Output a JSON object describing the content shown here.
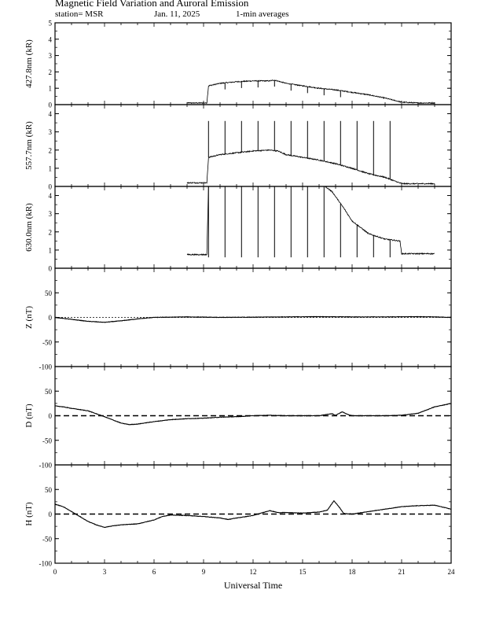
{
  "header": {
    "title": "Magnetic Field Variation and Auroral Emission",
    "station": "station= MSR",
    "date": "Jan. 11, 2025",
    "averaging": "1-min averages"
  },
  "chart_data": {
    "type": "line",
    "xlabel": "Universal Time",
    "xlim": [
      0,
      24
    ],
    "xticks": [
      0,
      3,
      6,
      9,
      12,
      15,
      18,
      21,
      24
    ],
    "panels": [
      {
        "id": "emission-4278",
        "ylabel": "427.8nm (kR)",
        "ylim": [
          0,
          5
        ],
        "yticks": [
          0,
          1,
          2,
          3,
          4,
          5
        ],
        "data_start": 8.0,
        "data_end": 23.0,
        "x": [
          8.0,
          9.2,
          9.3,
          10.0,
          11.0,
          12.0,
          13.0,
          13.3,
          14.0,
          15.0,
          16.0,
          17.0,
          18.0,
          19.0,
          20.0,
          21.0,
          22.0,
          23.0
        ],
        "y": [
          0.1,
          0.1,
          1.15,
          1.3,
          1.4,
          1.45,
          1.45,
          1.5,
          1.3,
          1.15,
          1.0,
          0.9,
          0.75,
          0.6,
          0.4,
          0.15,
          0.1,
          0.1
        ],
        "spikes_at": [
          10.3,
          11.3,
          12.3,
          13.3,
          14.3,
          15.3,
          16.3,
          17.3
        ],
        "spike_depth": 0.4
      },
      {
        "id": "emission-5577",
        "ylabel": "557.7nm (kR)",
        "ylim": [
          0,
          4.5
        ],
        "yticks": [
          0,
          1,
          2,
          3,
          4
        ],
        "data_start": 8.0,
        "data_end": 23.0,
        "x": [
          8.0,
          9.2,
          9.3,
          10.0,
          11.0,
          12.0,
          13.0,
          13.5,
          14.0,
          15.0,
          16.0,
          17.0,
          18.0,
          19.0,
          20.0,
          21.0,
          22.0,
          23.0
        ],
        "y": [
          0.2,
          0.2,
          1.6,
          1.75,
          1.85,
          1.95,
          2.0,
          1.95,
          1.75,
          1.6,
          1.45,
          1.25,
          1.0,
          0.7,
          0.5,
          0.15,
          0.15,
          0.15
        ],
        "spikes_at": [
          9.3,
          10.3,
          11.3,
          12.3,
          13.3,
          14.3,
          15.3,
          16.3,
          17.3,
          18.3,
          19.3,
          20.3
        ],
        "spike_top": 3.6
      },
      {
        "id": "emission-6300",
        "ylabel": "630.0nm (kR)",
        "ylim": [
          0,
          4.5
        ],
        "yticks": [
          0,
          1,
          2,
          3,
          4
        ],
        "data_start": 8.0,
        "data_end": 23.0,
        "x": [
          8.0,
          9.2,
          9.3,
          16.0,
          16.3,
          16.8,
          17.5,
          18.0,
          19.0,
          20.0,
          20.9,
          21.0,
          22.0,
          23.0
        ],
        "y": [
          0.75,
          0.75,
          4.6,
          4.6,
          4.55,
          4.2,
          3.3,
          2.6,
          1.9,
          1.6,
          1.5,
          0.8,
          0.8,
          0.8
        ],
        "spikes_at": [
          9.3,
          10.3,
          11.3,
          12.3,
          13.3,
          14.3,
          15.3,
          16.3,
          17.3,
          18.3,
          19.3,
          20.3
        ],
        "spike_bottom": 0.6
      },
      {
        "id": "mag-z",
        "ylabel": "Z (nT)",
        "ylim": [
          -100,
          100
        ],
        "yticks": [
          -100,
          -50,
          0,
          50
        ],
        "zero_line": "dotted",
        "data_start": 0,
        "data_end": 24,
        "x": [
          0,
          1,
          2,
          3,
          4,
          5,
          6,
          8,
          10,
          12,
          14,
          16,
          18,
          20,
          22,
          23,
          24
        ],
        "y": [
          0,
          -4,
          -8,
          -10,
          -7,
          -3,
          0,
          1,
          0,
          0.5,
          1,
          1.5,
          1,
          1,
          1.5,
          1,
          0
        ]
      },
      {
        "id": "mag-d",
        "ylabel": "D (nT)",
        "ylim": [
          -100,
          100
        ],
        "yticks": [
          -100,
          -50,
          0,
          50
        ],
        "zero_line": "dashed",
        "data_start": 0,
        "data_end": 24,
        "x": [
          0,
          0.5,
          1,
          2,
          3,
          4,
          4.5,
          5,
          6,
          7,
          8,
          9,
          10,
          11,
          12,
          13,
          14,
          15,
          16,
          16.5,
          16.8,
          17,
          17.4,
          17.7,
          18,
          19,
          20,
          21,
          22,
          23,
          24
        ],
        "y": [
          20,
          18,
          15,
          10,
          -2,
          -15,
          -18,
          -17,
          -12,
          -8,
          -6,
          -5,
          -3,
          -2,
          0,
          1,
          0,
          0,
          0,
          3,
          4,
          1,
          8,
          3,
          0,
          0,
          0,
          1,
          5,
          18,
          25
        ]
      },
      {
        "id": "mag-h",
        "ylabel": "H (nT)",
        "ylim": [
          -100,
          100
        ],
        "yticks": [
          -100,
          -50,
          0,
          50
        ],
        "zero_line": "dashed",
        "data_start": 0,
        "data_end": 24,
        "x": [
          0,
          0.5,
          1,
          1.5,
          2,
          2.5,
          3,
          3.5,
          4,
          5,
          6,
          6.5,
          7,
          8,
          9,
          10,
          10.5,
          11,
          12,
          12.5,
          13,
          13.5,
          14,
          15,
          16,
          16.5,
          16.9,
          17.2,
          17.5,
          18,
          19,
          20,
          21,
          22,
          23,
          24
        ],
        "y": [
          20,
          15,
          5,
          -5,
          -15,
          -22,
          -27,
          -24,
          -22,
          -20,
          -12,
          -5,
          -2,
          -3,
          -5,
          -8,
          -11,
          -8,
          -3,
          2,
          7,
          3,
          3,
          2,
          4,
          8,
          27,
          15,
          1,
          0,
          5,
          10,
          15,
          17,
          18,
          10
        ]
      }
    ]
  }
}
